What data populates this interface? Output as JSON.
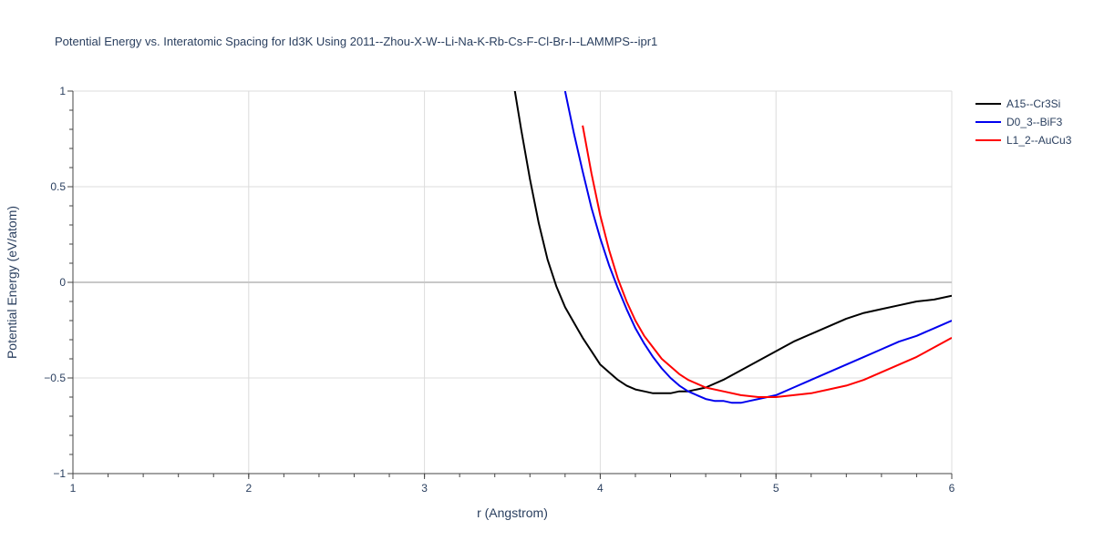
{
  "chart_data": {
    "type": "line",
    "title": "Potential Energy vs. Interatomic Spacing for Id3K Using 2011--Zhou-X-W--Li-Na-K-Rb-Cs-F-Cl-Br-I--LAMMPS--ipr1",
    "xlabel": "r (Angstrom)",
    "ylabel": "Potential Energy (eV/atom)",
    "xlim": [
      1,
      6
    ],
    "ylim": [
      -1,
      1
    ],
    "xticks": [
      1,
      2,
      3,
      4,
      5,
      6
    ],
    "xtick_labels": [
      "1",
      "2",
      "3",
      "4",
      "5",
      "6"
    ],
    "yticks": [
      -1,
      -0.5,
      0,
      0.5,
      1
    ],
    "ytick_labels": [
      "−1",
      "−0.5",
      "0",
      "0.5",
      "1"
    ],
    "grid": true,
    "legend_position": "top-right",
    "series": [
      {
        "name": "A15--Cr3Si",
        "color": "#000000",
        "x": [
          3.5,
          3.55,
          3.6,
          3.65,
          3.7,
          3.75,
          3.8,
          3.85,
          3.9,
          3.95,
          4.0,
          4.05,
          4.1,
          4.15,
          4.2,
          4.25,
          4.3,
          4.35,
          4.4,
          4.45,
          4.5,
          4.55,
          4.6,
          4.7,
          4.8,
          4.9,
          5.0,
          5.1,
          5.2,
          5.3,
          5.4,
          5.5,
          5.6,
          5.7,
          5.8,
          5.9,
          6.0
        ],
        "y": [
          1.08,
          0.8,
          0.54,
          0.31,
          0.12,
          -0.02,
          -0.13,
          -0.21,
          -0.29,
          -0.36,
          -0.43,
          -0.47,
          -0.51,
          -0.54,
          -0.56,
          -0.57,
          -0.58,
          -0.58,
          -0.58,
          -0.57,
          -0.57,
          -0.56,
          -0.55,
          -0.51,
          -0.46,
          -0.41,
          -0.36,
          -0.31,
          -0.27,
          -0.23,
          -0.19,
          -0.16,
          -0.14,
          -0.12,
          -0.1,
          -0.09,
          -0.07
        ]
      },
      {
        "name": "D0_3--BiF3",
        "color": "#0000ee",
        "x": [
          3.8,
          3.85,
          3.9,
          3.95,
          4.0,
          4.05,
          4.1,
          4.15,
          4.2,
          4.25,
          4.3,
          4.35,
          4.4,
          4.45,
          4.5,
          4.55,
          4.6,
          4.65,
          4.7,
          4.75,
          4.8,
          4.85,
          4.9,
          5.0,
          5.1,
          5.2,
          5.3,
          5.4,
          5.5,
          5.6,
          5.7,
          5.8,
          5.9,
          6.0
        ],
        "y": [
          1.0,
          0.78,
          0.58,
          0.39,
          0.23,
          0.09,
          -0.03,
          -0.14,
          -0.24,
          -0.32,
          -0.39,
          -0.45,
          -0.5,
          -0.54,
          -0.57,
          -0.59,
          -0.61,
          -0.62,
          -0.62,
          -0.63,
          -0.63,
          -0.62,
          -0.61,
          -0.59,
          -0.55,
          -0.51,
          -0.47,
          -0.43,
          -0.39,
          -0.35,
          -0.31,
          -0.28,
          -0.24,
          -0.2
        ]
      },
      {
        "name": "L1_2--AuCu3",
        "color": "#ff0000",
        "x": [
          3.9,
          3.95,
          4.0,
          4.05,
          4.1,
          4.15,
          4.2,
          4.25,
          4.3,
          4.35,
          4.4,
          4.45,
          4.5,
          4.55,
          4.6,
          4.7,
          4.8,
          4.9,
          5.0,
          5.1,
          5.2,
          5.3,
          5.4,
          5.5,
          5.6,
          5.7,
          5.8,
          5.9,
          6.0
        ],
        "y": [
          0.82,
          0.57,
          0.35,
          0.17,
          0.02,
          -0.1,
          -0.2,
          -0.28,
          -0.34,
          -0.4,
          -0.44,
          -0.48,
          -0.51,
          -0.53,
          -0.55,
          -0.57,
          -0.59,
          -0.6,
          -0.6,
          -0.59,
          -0.58,
          -0.56,
          -0.54,
          -0.51,
          -0.47,
          -0.43,
          -0.39,
          -0.34,
          -0.29
        ]
      }
    ]
  }
}
